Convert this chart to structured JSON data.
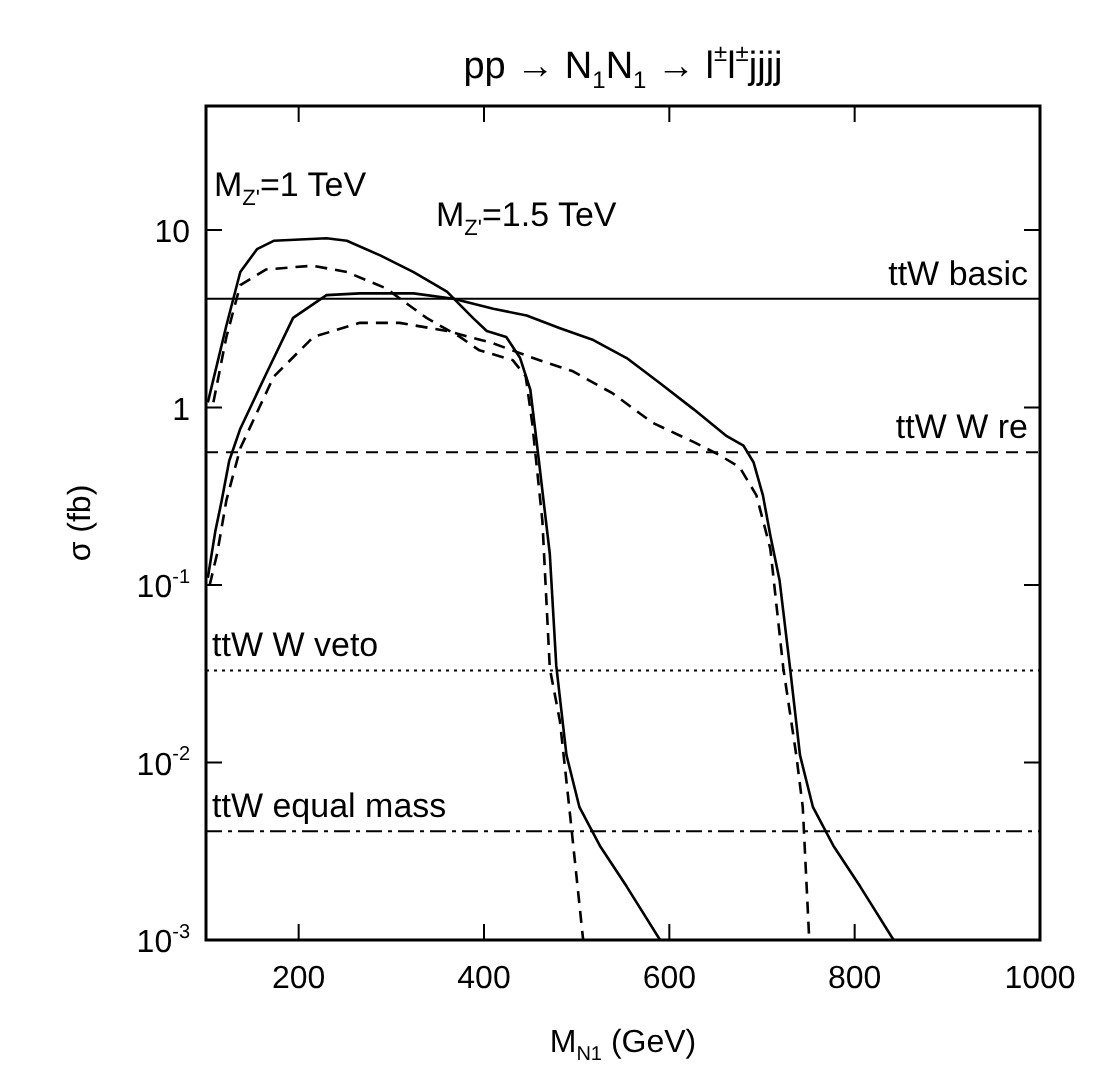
{
  "chart_data": {
    "type": "line",
    "title": "pp → N$_{1}$N$_{1}$ → l$^{±}$l$^{±}$jjjj",
    "xlabel": "M$_{N1}$ (GeV)",
    "ylabel": "σ (fb)",
    "log": "y",
    "grid": false,
    "legend": false,
    "marker": "none",
    "xlim": [
      100,
      1000
    ],
    "xticks": [
      200,
      400,
      600,
      800,
      1000
    ],
    "ylim": [
      0.001,
      50
    ],
    "yticks": [
      {
        "value": 0.001,
        "label": "10$^{-3}$"
      },
      {
        "value": 0.01,
        "label": "10$^{-2}$"
      },
      {
        "value": 0.1,
        "label": "10$^{-1}$"
      },
      1,
      10
    ],
    "annotations": [
      "M$_{Z'}$=1 TeV",
      "M$_{Z'}$=1.5 TeV"
    ],
    "ref_lines": [
      {
        "axis": "y",
        "value": 4.1,
        "label": "ttW basic",
        "color": "#000000",
        "line_style": "solid"
      },
      {
        "axis": "y",
        "value": 0.56,
        "label": "ttW W re",
        "color": "#000000",
        "line_style": "dashed"
      },
      {
        "axis": "y",
        "value": 0.033,
        "label": "ttW W veto",
        "color": "#000000",
        "line_style": "dotted"
      },
      {
        "axis": "y",
        "value": 0.0041,
        "label": "ttW equal mass",
        "color": "#000000",
        "line_style": "dashdot"
      }
    ],
    "series": [
      {
        "color": "#000000",
        "line_style": "solid",
        "x": [
          102,
          122,
          137,
          155,
          173,
          230,
          252,
          288,
          324,
          360,
          388,
          403,
          424,
          439,
          450,
          457,
          471,
          478,
          489,
          503,
          525,
          554,
          590
        ],
        "values": [
          1.07,
          2.9,
          5.8,
          7.8,
          8.7,
          9.0,
          8.7,
          7.2,
          5.8,
          4.5,
          3.2,
          2.7,
          2.5,
          1.9,
          1.26,
          0.63,
          0.15,
          0.035,
          0.011,
          0.0056,
          0.0034,
          0.002,
          0.001
        ]
      },
      {
        "color": "#000000",
        "line_style": "dashed",
        "x": [
          108,
          122,
          137,
          165,
          215,
          252,
          294,
          338,
          374,
          395,
          431,
          445,
          452,
          463,
          471,
          482,
          492,
          507
        ],
        "values": [
          1.07,
          2.5,
          4.9,
          6.0,
          6.3,
          5.8,
          4.7,
          3.2,
          2.5,
          2.1,
          1.85,
          1.5,
          0.82,
          0.23,
          0.034,
          0.017,
          0.0056,
          0.001
        ]
      },
      {
        "color": "#000000",
        "line_style": "solid",
        "x": [
          102,
          110,
          117,
          125,
          137,
          165,
          194,
          230,
          266,
          324,
          367,
          410,
          446,
          482,
          518,
          554,
          590,
          626,
          662,
          680,
          691,
          701,
          709,
          719,
          730,
          741,
          755,
          777,
          806,
          842
        ],
        "values": [
          0.11,
          0.2,
          0.3,
          0.5,
          0.76,
          1.55,
          3.2,
          4.3,
          4.4,
          4.4,
          4.1,
          3.6,
          3.3,
          2.8,
          2.4,
          1.9,
          1.37,
          0.98,
          0.69,
          0.61,
          0.49,
          0.32,
          0.19,
          0.106,
          0.035,
          0.011,
          0.0056,
          0.0034,
          0.002,
          0.001
        ]
      },
      {
        "color": "#000000",
        "line_style": "dashed",
        "x": [
          104,
          112,
          122,
          137,
          173,
          216,
          266,
          309,
          360,
          410,
          453,
          496,
          539,
          582,
          626,
          654,
          676,
          694,
          709,
          723,
          737,
          744,
          751
        ],
        "values": [
          0.1,
          0.15,
          0.3,
          0.59,
          1.49,
          2.5,
          3.0,
          3.0,
          2.7,
          2.3,
          1.9,
          1.6,
          1.2,
          0.82,
          0.64,
          0.54,
          0.46,
          0.32,
          0.16,
          0.034,
          0.011,
          0.0056,
          0.001
        ]
      }
    ]
  }
}
